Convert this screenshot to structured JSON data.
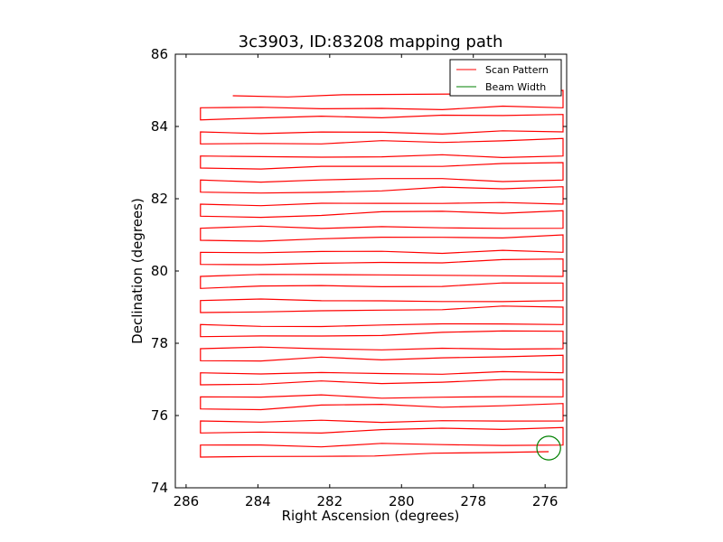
{
  "chart_data": {
    "type": "line",
    "title": "3c3903, ID:83208 mapping path",
    "xlabel": "Right Ascension (degrees)",
    "ylabel": "Declination (degrees)",
    "xlim": [
      286.3,
      275.4
    ],
    "ylim": [
      74,
      86
    ],
    "x_inverted": true,
    "xticks": [
      286,
      284,
      282,
      280,
      278,
      276
    ],
    "yticks": [
      74,
      76,
      78,
      80,
      82,
      84,
      86
    ],
    "grid": false,
    "legend": {
      "placement": "top-right",
      "entries": [
        "Scan Pattern",
        "Beam Width"
      ]
    },
    "scan": {
      "name": "Scan Pattern",
      "color": "#ff0000",
      "dec_start": 74.85,
      "dec_end": 84.85,
      "row_count": 31,
      "ra_east_edge": 285.6,
      "ra_west_edge": 275.5,
      "ra_path_start": 284.7,
      "ra_path_end": 275.9
    },
    "beam": {
      "name": "Beam Width",
      "color": "#008000",
      "ra_center": 275.9,
      "dec_center": 75.1,
      "radius_deg": 0.33
    }
  }
}
